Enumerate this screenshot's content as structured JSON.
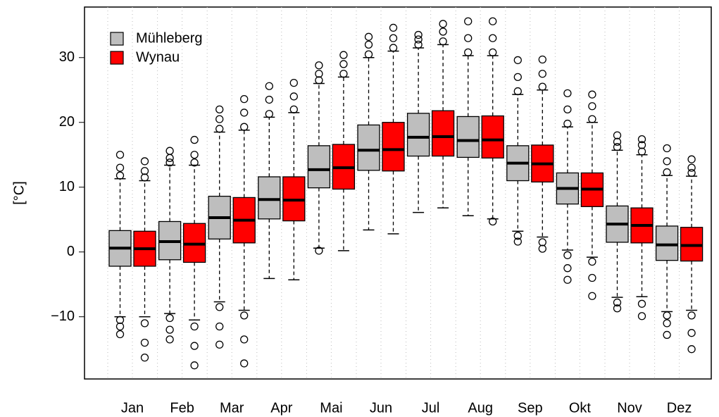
{
  "chart_data": {
    "type": "boxplot",
    "ylabel": "[°C]",
    "categories": [
      "Jan",
      "Feb",
      "Mar",
      "Apr",
      "Mai",
      "Jun",
      "Jul",
      "Aug",
      "Sep",
      "Okt",
      "Nov",
      "Dez"
    ],
    "ylim": [
      -19.6,
      37.8
    ],
    "yticks": [
      {
        "value": -10,
        "label": "−10"
      },
      0,
      10,
      20,
      30
    ],
    "legend": "top-left",
    "series": [
      {
        "name": "Mühleberg",
        "color": "#bebebe",
        "whisker_low": [
          -10,
          -9.5,
          -7.7,
          -4.1,
          0.6,
          3.4,
          6.1,
          5.6,
          3.2,
          0.3,
          -7,
          -9.2
        ],
        "q1": [
          -2.2,
          -1.2,
          2.0,
          5.1,
          9.9,
          12.6,
          14.8,
          14.6,
          11.0,
          7.4,
          1.5,
          -1.3
        ],
        "median": [
          0.6,
          1.6,
          5.3,
          8.1,
          12.7,
          15.7,
          17.7,
          17.2,
          13.7,
          9.8,
          4.3,
          1.1
        ],
        "q3": [
          3.3,
          4.7,
          8.6,
          11.6,
          16.4,
          19.6,
          21.4,
          20.9,
          16.4,
          12.2,
          7.1,
          4.0
        ],
        "whisker_high": [
          11.3,
          13.4,
          18.5,
          20.8,
          26,
          30,
          31.5,
          30.3,
          24.3,
          19.3,
          15.7,
          11.8
        ],
        "outliers": [
          [
            -12.7,
            -11.5,
            -10.5,
            11.8,
            13,
            15
          ],
          [
            -13.5,
            -12,
            -10.2,
            13.8,
            14.5,
            15.6
          ],
          [
            -14.3,
            -11.5,
            -8.5,
            19,
            20.5,
            22
          ],
          [
            21.3,
            23.5,
            25.6
          ],
          [
            0.2,
            26.5,
            27.5,
            28.8
          ],
          [
            30.5,
            32,
            33.2
          ],
          [
            32,
            32.8,
            33.5
          ],
          [
            30.8,
            33,
            35.6
          ],
          [
            1.6,
            2.5,
            24.8,
            27,
            29.6
          ],
          [
            -4.3,
            -2.5,
            -0.5,
            19.8,
            22,
            24.5
          ],
          [
            -8.7,
            -7.8,
            16.2,
            17,
            18
          ],
          [
            -12.8,
            -11,
            -9.8,
            12.3,
            14,
            16
          ]
        ]
      },
      {
        "name": "Wynau",
        "color": "#ff0000",
        "whisker_low": [
          -10,
          -10.5,
          -9,
          -4.3,
          0.2,
          2.8,
          6.8,
          5.1,
          2.3,
          -0.8,
          -6.9,
          -9
        ],
        "q1": [
          -2.2,
          -1.6,
          1.4,
          4.8,
          9.7,
          12.5,
          14.8,
          14.5,
          10.8,
          7.0,
          1.4,
          -1.4
        ],
        "median": [
          0.5,
          1.2,
          4.9,
          8.0,
          13.0,
          15.8,
          17.8,
          17.3,
          13.6,
          9.7,
          4.1,
          1.0
        ],
        "q3": [
          3.2,
          4.4,
          8.4,
          11.6,
          16.6,
          20.0,
          21.8,
          21.0,
          16.5,
          12.2,
          6.8,
          3.8
        ],
        "whisker_high": [
          11,
          13.4,
          18.8,
          21.5,
          27,
          31,
          32,
          30.3,
          25,
          20,
          15,
          11.7
        ],
        "outliers": [
          [
            -16.3,
            -14,
            -11,
            11.5,
            12.5,
            14
          ],
          [
            -17.5,
            -14.5,
            -11.5,
            13.8,
            15,
            17.3
          ],
          [
            -17.2,
            -13.5,
            -9.8,
            19.3,
            21.5,
            23.6
          ],
          [
            22,
            24,
            26.1
          ],
          [
            27.5,
            29,
            30.4
          ],
          [
            31.5,
            33,
            34.6
          ],
          [
            32.5,
            34,
            35.2
          ],
          [
            4.7,
            30.8,
            33,
            35.6
          ],
          [
            0.5,
            1.5,
            25.5,
            27.5,
            29.7
          ],
          [
            -6.8,
            -4,
            -1.5,
            20.5,
            22.5,
            24.3
          ],
          [
            -9.9,
            -8,
            15.5,
            16.5,
            17.4
          ],
          [
            -15,
            -12.5,
            -9.8,
            12.2,
            13,
            14.3
          ]
        ]
      }
    ]
  }
}
